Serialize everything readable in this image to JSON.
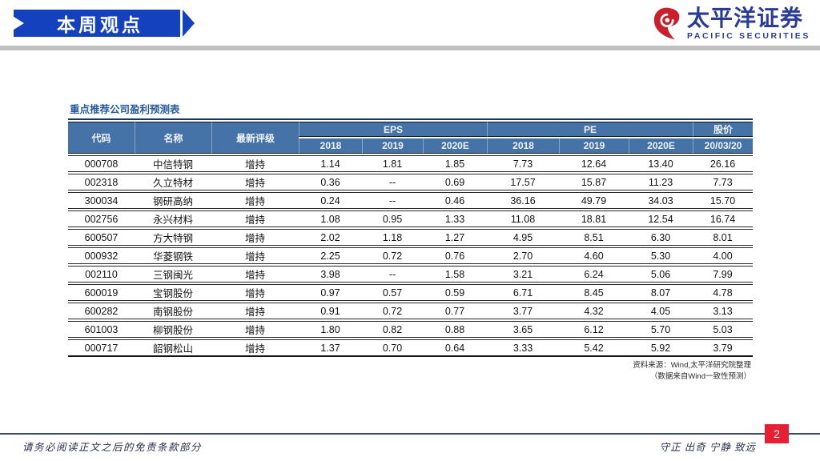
{
  "banner": {
    "label": "本周观点"
  },
  "logo": {
    "cn": "太平洋证券",
    "en": "PACIFIC SECURITIES"
  },
  "table": {
    "title": "重点推荐公司盈利预测表",
    "group_headers": {
      "code": "代码",
      "name": "名称",
      "rating": "最新评级",
      "eps": "EPS",
      "pe": "PE",
      "price": "股价"
    },
    "sub_headers": [
      "2018",
      "2019",
      "2020E",
      "2018",
      "2019",
      "2020E",
      "20/03/20"
    ],
    "rows": [
      [
        "000708",
        "中信特钢",
        "增持",
        "1.14",
        "1.81",
        "1.85",
        "7.73",
        "12.64",
        "13.40",
        "26.16"
      ],
      [
        "002318",
        "久立特材",
        "增持",
        "0.36",
        "--",
        "0.69",
        "17.57",
        "15.87",
        "11.23",
        "7.73"
      ],
      [
        "300034",
        "钢研高纳",
        "增持",
        "0.24",
        "--",
        "0.46",
        "36.16",
        "49.79",
        "34.03",
        "15.70"
      ],
      [
        "002756",
        "永兴材料",
        "增持",
        "1.08",
        "0.95",
        "1.33",
        "11.08",
        "18.81",
        "12.54",
        "16.74"
      ],
      [
        "600507",
        "方大特钢",
        "增持",
        "2.02",
        "1.18",
        "1.27",
        "4.95",
        "8.51",
        "6.30",
        "8.01"
      ],
      [
        "000932",
        "华菱钢铁",
        "增持",
        "2.25",
        "0.72",
        "0.76",
        "2.70",
        "4.60",
        "5.30",
        "4.00"
      ],
      [
        "002110",
        "三钢闽光",
        "增持",
        "3.98",
        "--",
        "1.58",
        "3.21",
        "6.24",
        "5.06",
        "7.99"
      ],
      [
        "600019",
        "宝钢股份",
        "增持",
        "0.97",
        "0.57",
        "0.59",
        "6.71",
        "8.45",
        "8.07",
        "4.78"
      ],
      [
        "600282",
        "南钢股份",
        "增持",
        "0.91",
        "0.72",
        "0.77",
        "3.77",
        "4.32",
        "4.05",
        "3.13"
      ],
      [
        "601003",
        "柳钢股份",
        "增持",
        "1.80",
        "0.82",
        "0.88",
        "3.65",
        "6.12",
        "5.70",
        "5.03"
      ],
      [
        "000717",
        "韶钢松山",
        "增持",
        "1.37",
        "0.70",
        "0.64",
        "3.33",
        "5.42",
        "5.92",
        "3.79"
      ]
    ],
    "source_line1": "资料来源：Wind,太平洋研究院整理",
    "source_line2": "（数据来自Wind一致性预测）"
  },
  "footer": {
    "disclaimer": "请务必阅读正文之后的免责条款部分",
    "motto": "守正 出奇 宁静 致远",
    "page": "2"
  },
  "colors": {
    "banner_blue": "#1441BE",
    "table_header_blue": "#4573A7",
    "title_blue": "#2A5C9C",
    "brand_blue": "#2B3C97",
    "brand_red": "#C9202B",
    "page_box_red": "#E61F33",
    "footer_line": "#3D4E66",
    "gray_bar": "#C1C1C1"
  }
}
